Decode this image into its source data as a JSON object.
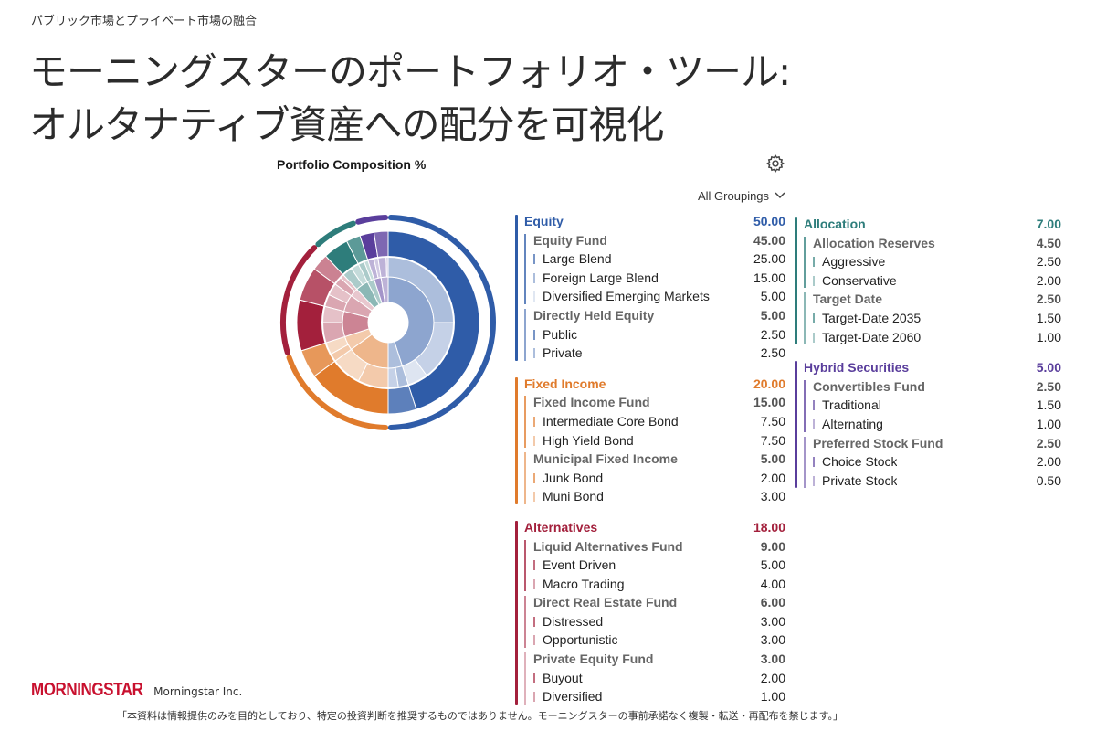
{
  "header": {
    "breadcrumb": "パブリック市場とプライベート市場の融合",
    "title_line1": "モーニングスターのポートフォリオ・ツール:",
    "title_line2": "オルタナティブ資産への配分を可視化"
  },
  "widget": {
    "title": "Portfolio Composition %",
    "settings_icon": "gear-icon",
    "grouping_label": "All Groupings",
    "grouping_icon": "chevron-down-icon"
  },
  "chart_data": {
    "type": "pie",
    "style": "sunburst",
    "title": "Portfolio Composition %",
    "categories": [
      {
        "name": "Equity",
        "value": "50.00",
        "color": "#2f5ca8",
        "children": [
          {
            "name": "Equity Fund",
            "value": "45.00",
            "children": [
              {
                "name": "Large Blend",
                "value": "25.00"
              },
              {
                "name": "Foreign Large Blend",
                "value": "15.00"
              },
              {
                "name": "Diversified Emerging Markets",
                "value": "5.00"
              }
            ]
          },
          {
            "name": "Directly Held Equity",
            "value": "5.00",
            "children": [
              {
                "name": "Public",
                "value": "2.50"
              },
              {
                "name": "Private",
                "value": "2.50"
              }
            ]
          }
        ]
      },
      {
        "name": "Fixed Income",
        "value": "20.00",
        "color": "#e07b2c",
        "children": [
          {
            "name": "Fixed Income Fund",
            "value": "15.00",
            "children": [
              {
                "name": "Intermediate Core Bond",
                "value": "7.50"
              },
              {
                "name": "High Yield Bond",
                "value": "7.50"
              }
            ]
          },
          {
            "name": "Municipal Fixed Income",
            "value": "5.00",
            "children": [
              {
                "name": "Junk Bond",
                "value": "2.00"
              },
              {
                "name": "Muni Bond",
                "value": "3.00"
              }
            ]
          }
        ]
      },
      {
        "name": "Alternatives",
        "value": "18.00",
        "color": "#a3203c",
        "children": [
          {
            "name": "Liquid Alternatives Fund",
            "value": "9.00",
            "children": [
              {
                "name": "Event Driven",
                "value": "5.00"
              },
              {
                "name": "Macro Trading",
                "value": "4.00"
              }
            ]
          },
          {
            "name": "Direct Real Estate Fund",
            "value": "6.00",
            "children": [
              {
                "name": "Distressed",
                "value": "3.00"
              },
              {
                "name": "Opportunistic",
                "value": "3.00"
              }
            ]
          },
          {
            "name": "Private Equity Fund",
            "value": "3.00",
            "children": [
              {
                "name": "Buyout",
                "value": "2.00"
              },
              {
                "name": "Diversified",
                "value": "1.00"
              }
            ]
          }
        ]
      },
      {
        "name": "Allocation",
        "value": "7.00",
        "color": "#2e7d7b",
        "children": [
          {
            "name": "Allocation Reserves",
            "value": "4.50",
            "children": [
              {
                "name": "Aggressive",
                "value": "2.50"
              },
              {
                "name": "Conservative",
                "value": "2.00"
              }
            ]
          },
          {
            "name": "Target Date",
            "value": "2.50",
            "children": [
              {
                "name": "Target-Date 2035",
                "value": "1.50"
              },
              {
                "name": "Target-Date 2060",
                "value": "1.00"
              }
            ]
          }
        ]
      },
      {
        "name": "Hybrid Securities",
        "value": "5.00",
        "color": "#5a3e9c",
        "children": [
          {
            "name": "Convertibles Fund",
            "value": "2.50",
            "children": [
              {
                "name": "Traditional",
                "value": "1.50"
              },
              {
                "name": "Alternating",
                "value": "1.00"
              }
            ]
          },
          {
            "name": "Preferred Stock Fund",
            "value": "2.50",
            "children": [
              {
                "name": "Choice Stock",
                "value": "2.00"
              },
              {
                "name": "Private Stock",
                "value": "0.50"
              }
            ]
          }
        ]
      }
    ]
  },
  "footer": {
    "logo_text": "MORNINGSTAR",
    "company": "Morningstar Inc.",
    "disclaimer": "「本資料は情報提供のみを目的としており、特定の投資判断を推奨するものではありません。モーニングスターの事前承諾なく複製・転送・再配布を禁じます。」"
  }
}
